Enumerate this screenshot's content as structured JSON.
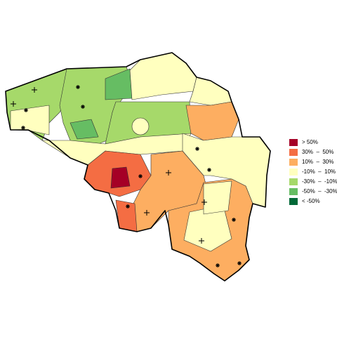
{
  "legend": {
    "entries": [
      {
        "label": "> 50%",
        "color": "#a50026"
      },
      {
        "label": "30%  –  50%",
        "color": "#f46d43"
      },
      {
        "label": "10%  –  30%",
        "color": "#fdae61"
      },
      {
        "label": "-10%  –  10%",
        "color": "#ffffbf"
      },
      {
        "label": "-30%  –  -10%",
        "color": "#a6d96a"
      },
      {
        "label": "-50%  –  -30%",
        "color": "#66bd63"
      },
      {
        "label": "< -50%",
        "color": "#006837"
      }
    ]
  }
}
